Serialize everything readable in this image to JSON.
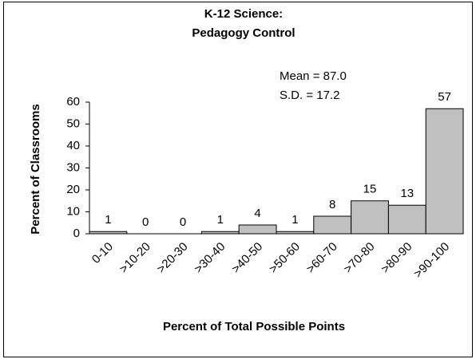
{
  "chart_data": {
    "type": "bar",
    "title": [
      "K-12 Science:",
      "Pedagogy Control"
    ],
    "annotations": [
      "Mean = 87.0",
      "S.D. = 17.2"
    ],
    "xlabel": "Percent of Total Possible Points",
    "ylabel": "Percent of Classrooms",
    "categories": [
      "0-10",
      ">10-20",
      ">20-30",
      ">30-40",
      ">40-50",
      ">50-60",
      ">60-70",
      ">70-80",
      ">80-90",
      ">90-100"
    ],
    "values": [
      1,
      0,
      0,
      1,
      4,
      1,
      8,
      15,
      13,
      57
    ],
    "color": "#c0c0c0",
    "ylim": [
      0,
      60
    ],
    "yticks": [
      0,
      10,
      20,
      30,
      40,
      50,
      60
    ],
    "grid": false
  }
}
